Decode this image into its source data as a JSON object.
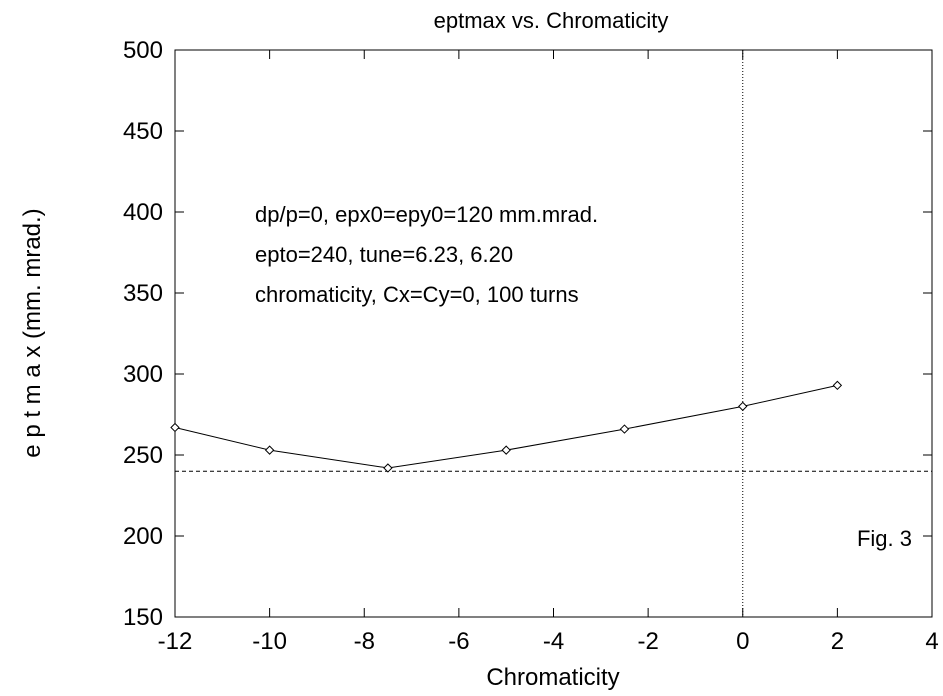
{
  "chart_data": {
    "type": "line",
    "title": "eptmax vs. Chromaticity",
    "xlabel": "Chromaticity",
    "ylabel": "e p t m a x  (mm. mrad.)",
    "xlim": [
      -12,
      4
    ],
    "ylim": [
      150,
      500
    ],
    "xticks": [
      -12,
      -10,
      -8,
      -6,
      -4,
      -2,
      0,
      2,
      4
    ],
    "yticks": [
      150,
      200,
      250,
      300,
      350,
      400,
      450,
      500
    ],
    "grid": false,
    "series": [
      {
        "x": [
          -12,
          -10,
          -7.5,
          -5,
          -2.5,
          0,
          2
        ],
        "y": [
          267,
          253,
          242,
          253,
          266,
          280,
          293
        ],
        "marker": "diamond",
        "color": "#000000"
      }
    ],
    "reference_lines": {
      "horizontal": {
        "y": 240,
        "style": "dashed"
      },
      "vertical": {
        "x": 0,
        "style": "dotted"
      }
    },
    "annotations": [
      "dp/p=0, epx0=epy0=120 mm.mrad.",
      "epto=240,  tune=6.23, 6.20",
      "chromaticity, Cx=Cy=0, 100 turns"
    ],
    "figure_label": "Fig. 3"
  }
}
